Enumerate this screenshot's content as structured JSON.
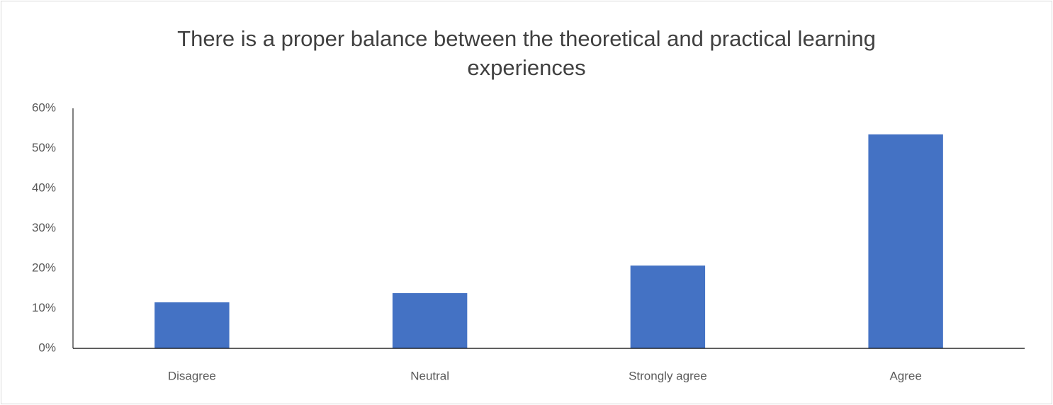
{
  "chart_data": {
    "type": "bar",
    "title": "There is a proper balance between the theoretical and practical learning experiences",
    "categories": [
      "Disagree",
      "Neutral",
      "Strongly agree",
      "Agree"
    ],
    "values": [
      11.5,
      13.8,
      20.7,
      53.5
    ],
    "color": "#4472c4",
    "ylim": [
      0,
      60
    ],
    "yticks": [
      {
        "value": 0,
        "label": "0%"
      },
      {
        "value": 10,
        "label": "10%"
      },
      {
        "value": 20,
        "label": "20%"
      },
      {
        "value": 30,
        "label": "30%"
      },
      {
        "value": 40,
        "label": "40%"
      },
      {
        "value": 50,
        "label": "50%"
      },
      {
        "value": 60,
        "label": "60%"
      }
    ],
    "grid": false
  }
}
